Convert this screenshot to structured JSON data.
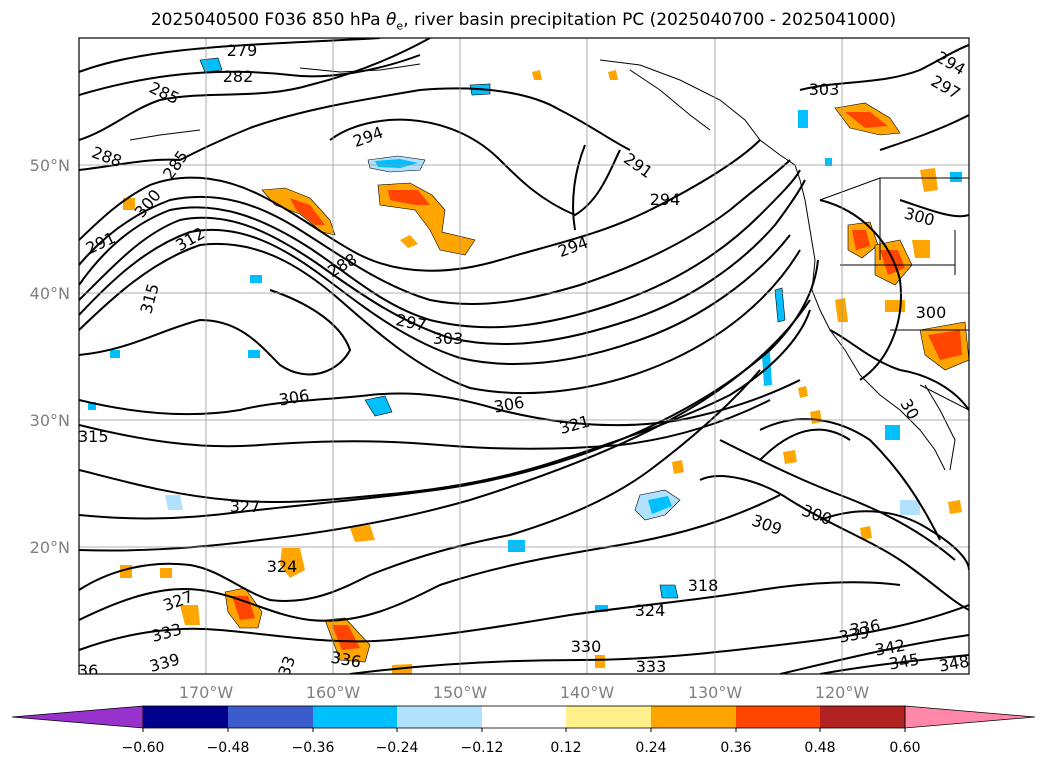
{
  "title": {
    "prefix": "2025040500 F036 850 hPa ",
    "symbol": "θ",
    "subscript": "e",
    "suffix": ", river basin precipitation PC (2025040700 - 2025041000)"
  },
  "map": {
    "lon_range": [
      -180,
      -110
    ],
    "lat_range": [
      10,
      60
    ],
    "lat_labels": [
      "20°N",
      "30°N",
      "40°N",
      "50°N"
    ],
    "lon_labels": [
      "170°W",
      "160°W",
      "150°W",
      "140°W",
      "130°W",
      "120°W"
    ],
    "gridlines": true,
    "contour_color": "#000000",
    "theta_e_labels": [
      "279",
      "282",
      "285",
      "288",
      "285",
      "300",
      "291",
      "312",
      "315",
      "294",
      "288",
      "297",
      "303",
      "291",
      "294",
      "294",
      "306",
      "306",
      "321",
      "315",
      "327",
      "324",
      "327",
      "333",
      "339",
      "336",
      "33",
      "336",
      "330",
      "333",
      "324",
      "318",
      "309",
      "300",
      "303",
      "297",
      "294",
      "300",
      "300",
      "339",
      "336",
      "342",
      "345",
      "348",
      "30"
    ]
  },
  "colorbar": {
    "boundaries": [
      -0.72,
      -0.6,
      -0.48,
      -0.36,
      -0.24,
      -0.12,
      0.12,
      0.24,
      0.36,
      0.48,
      0.6,
      0.72
    ],
    "colors": [
      "#9932cc",
      "#00008b",
      "#3a5bcc",
      "#00bfff",
      "#b0e2ff",
      "#ffffff",
      "#fff08c",
      "#ffa500",
      "#ff4500",
      "#b22222",
      "#ff88aa"
    ],
    "tick_labels": [
      "−0.60",
      "−0.48",
      "−0.36",
      "−0.24",
      "−0.12",
      "0.12",
      "0.24",
      "0.36",
      "0.48",
      "0.60"
    ],
    "extend": "both"
  }
}
